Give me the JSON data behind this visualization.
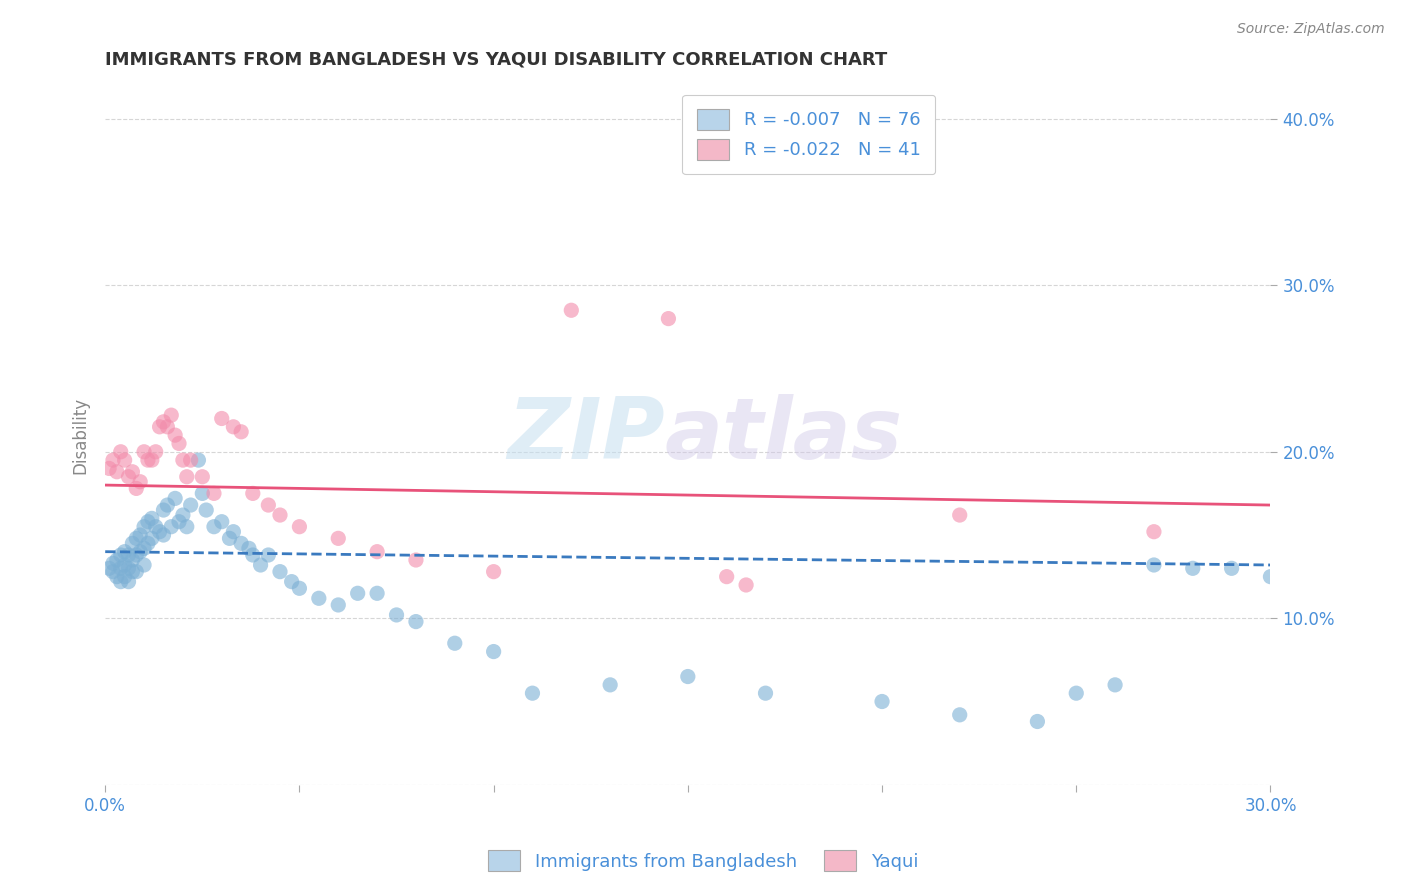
{
  "title": "IMMIGRANTS FROM BANGLADESH VS YAQUI DISABILITY CORRELATION CHART",
  "source_text": "Source: ZipAtlas.com",
  "watermark_zip": "ZIP",
  "watermark_atlas": "atlas",
  "xlabel": "",
  "ylabel": "Disability",
  "xlim": [
    0.0,
    0.3
  ],
  "ylim": [
    0.0,
    0.42
  ],
  "legend_entries": [
    {
      "label": "R = -0.007   N = 76",
      "color": "#b8d4ea"
    },
    {
      "label": "R = -0.022   N = 41",
      "color": "#f4b8c8"
    }
  ],
  "blue_scatter_x": [
    0.001,
    0.002,
    0.002,
    0.003,
    0.003,
    0.004,
    0.004,
    0.004,
    0.005,
    0.005,
    0.005,
    0.006,
    0.006,
    0.006,
    0.007,
    0.007,
    0.007,
    0.008,
    0.008,
    0.008,
    0.009,
    0.009,
    0.01,
    0.01,
    0.01,
    0.011,
    0.011,
    0.012,
    0.012,
    0.013,
    0.014,
    0.015,
    0.015,
    0.016,
    0.017,
    0.018,
    0.019,
    0.02,
    0.021,
    0.022,
    0.024,
    0.025,
    0.026,
    0.028,
    0.03,
    0.032,
    0.033,
    0.035,
    0.037,
    0.038,
    0.04,
    0.042,
    0.045,
    0.048,
    0.05,
    0.055,
    0.06,
    0.065,
    0.07,
    0.075,
    0.08,
    0.09,
    0.1,
    0.11,
    0.13,
    0.15,
    0.17,
    0.2,
    0.22,
    0.24,
    0.25,
    0.26,
    0.27,
    0.28,
    0.29,
    0.3
  ],
  "blue_scatter_y": [
    0.13,
    0.133,
    0.128,
    0.135,
    0.125,
    0.138,
    0.13,
    0.122,
    0.14,
    0.132,
    0.125,
    0.138,
    0.13,
    0.122,
    0.145,
    0.135,
    0.128,
    0.148,
    0.138,
    0.128,
    0.15,
    0.14,
    0.155,
    0.142,
    0.132,
    0.158,
    0.145,
    0.16,
    0.148,
    0.155,
    0.152,
    0.165,
    0.15,
    0.168,
    0.155,
    0.172,
    0.158,
    0.162,
    0.155,
    0.168,
    0.195,
    0.175,
    0.165,
    0.155,
    0.158,
    0.148,
    0.152,
    0.145,
    0.142,
    0.138,
    0.132,
    0.138,
    0.128,
    0.122,
    0.118,
    0.112,
    0.108,
    0.115,
    0.115,
    0.102,
    0.098,
    0.085,
    0.08,
    0.055,
    0.06,
    0.065,
    0.055,
    0.05,
    0.042,
    0.038,
    0.055,
    0.06,
    0.132,
    0.13,
    0.13,
    0.125
  ],
  "pink_scatter_x": [
    0.001,
    0.002,
    0.003,
    0.004,
    0.005,
    0.006,
    0.007,
    0.008,
    0.009,
    0.01,
    0.011,
    0.012,
    0.013,
    0.014,
    0.015,
    0.016,
    0.017,
    0.018,
    0.019,
    0.02,
    0.021,
    0.022,
    0.025,
    0.028,
    0.03,
    0.033,
    0.035,
    0.038,
    0.042,
    0.045,
    0.05,
    0.06,
    0.07,
    0.08,
    0.1,
    0.12,
    0.145,
    0.16,
    0.165,
    0.22,
    0.27
  ],
  "pink_scatter_y": [
    0.19,
    0.195,
    0.188,
    0.2,
    0.195,
    0.185,
    0.188,
    0.178,
    0.182,
    0.2,
    0.195,
    0.195,
    0.2,
    0.215,
    0.218,
    0.215,
    0.222,
    0.21,
    0.205,
    0.195,
    0.185,
    0.195,
    0.185,
    0.175,
    0.22,
    0.215,
    0.212,
    0.175,
    0.168,
    0.162,
    0.155,
    0.148,
    0.14,
    0.135,
    0.128,
    0.285,
    0.28,
    0.125,
    0.12,
    0.162,
    0.152
  ],
  "blue_line_x": [
    0.0,
    0.3
  ],
  "blue_line_y": [
    0.14,
    0.132
  ],
  "pink_line_x": [
    0.0,
    0.3
  ],
  "pink_line_y": [
    0.18,
    0.168
  ],
  "blue_scatter_color": "#7bafd4",
  "pink_scatter_color": "#f28baa",
  "blue_line_color": "#3a7abf",
  "pink_line_color": "#e8527a",
  "blue_legend_color": "#b8d4ea",
  "pink_legend_color": "#f4b8c8",
  "legend_text_color": "#4a90d9",
  "background_color": "#ffffff",
  "grid_color": "#cccccc",
  "title_color": "#333333",
  "axis_color": "#888888"
}
